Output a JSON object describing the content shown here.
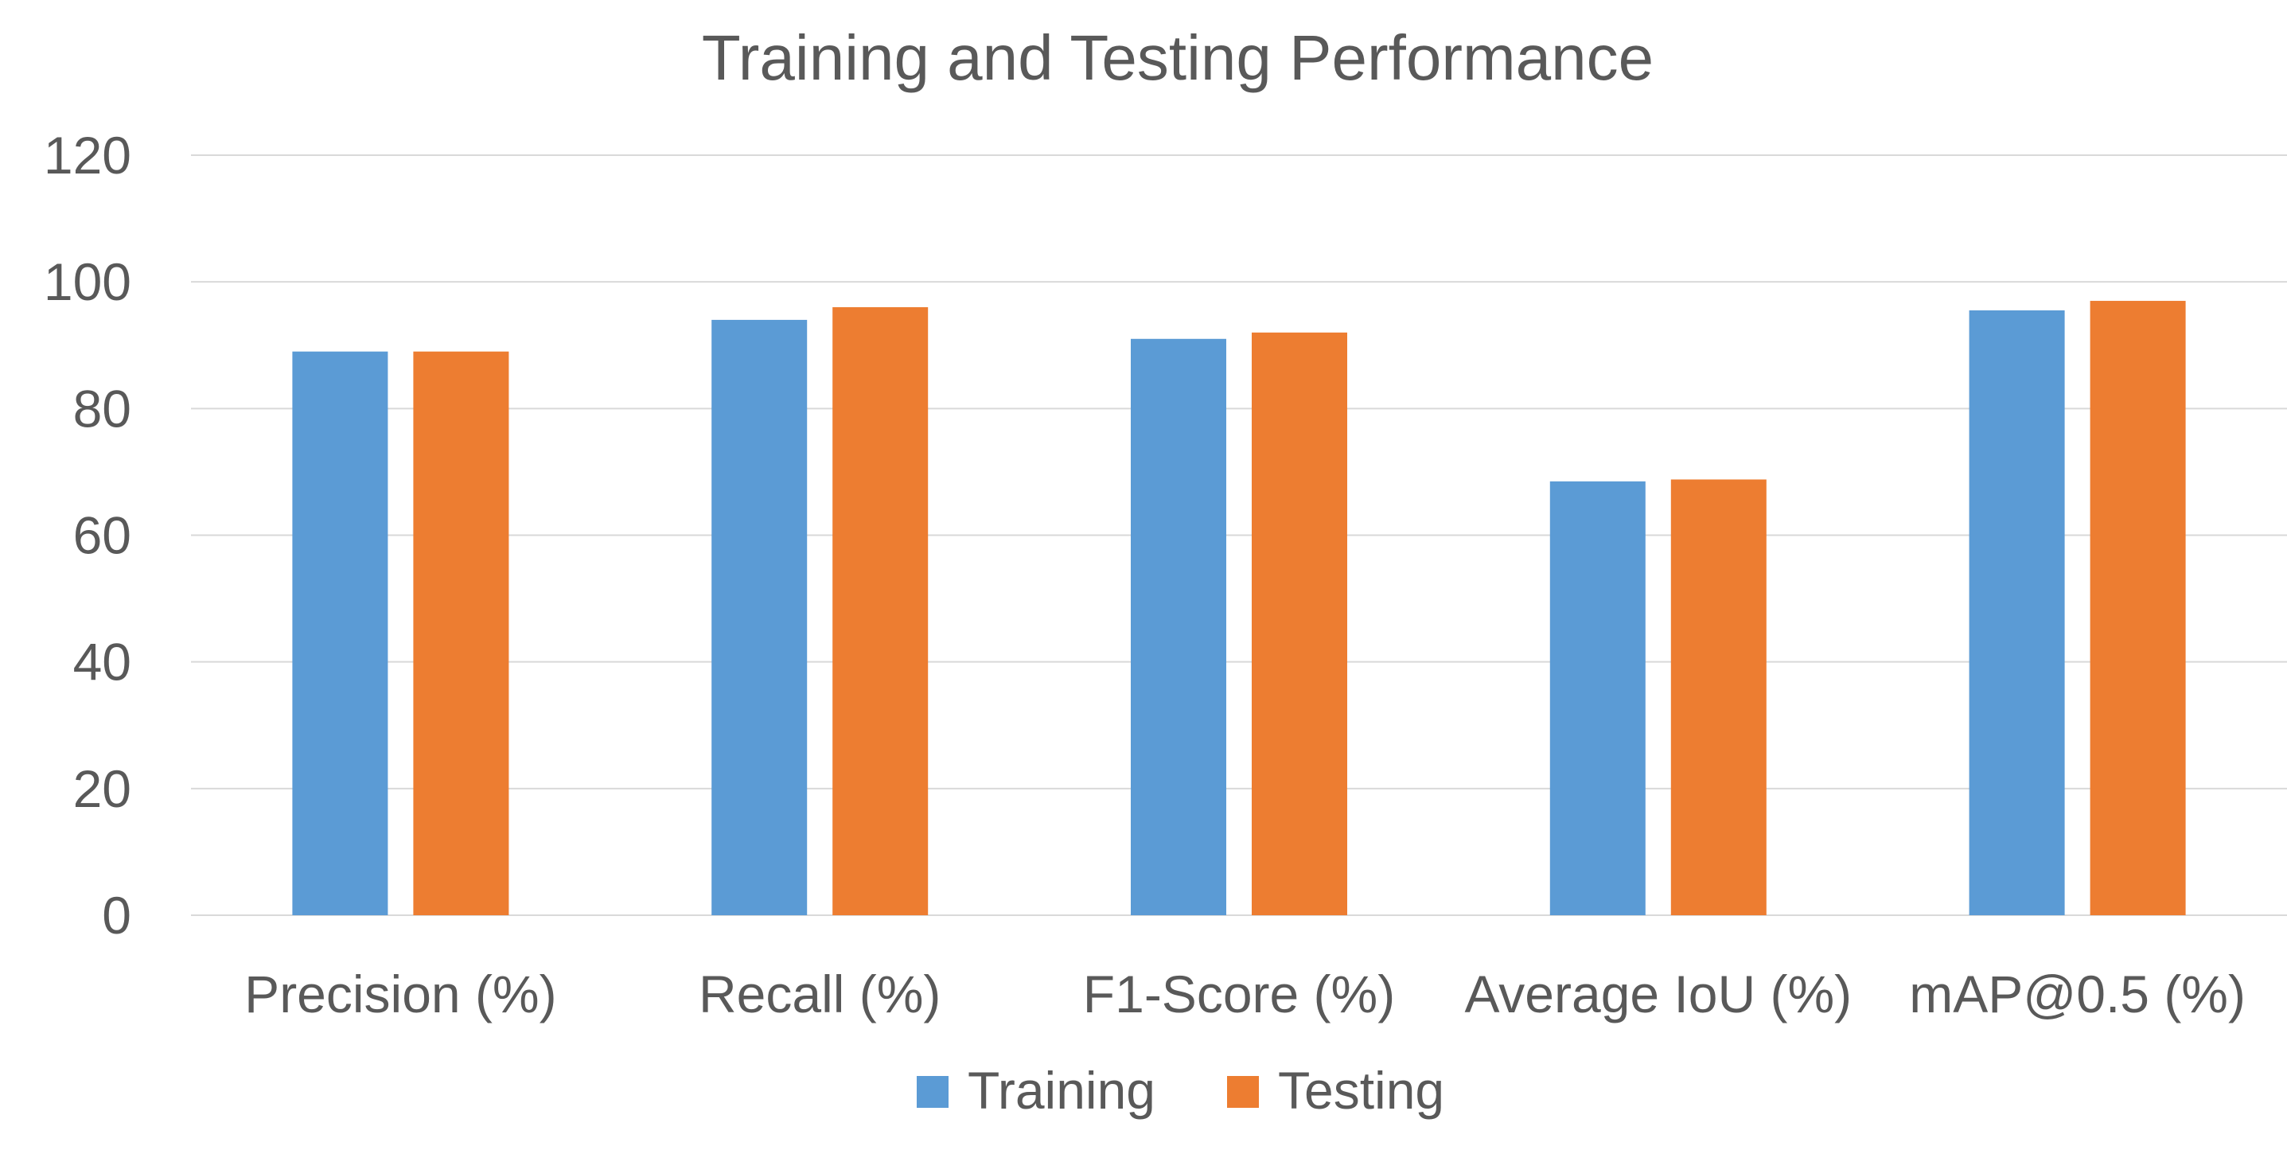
{
  "chart_data": {
    "type": "bar",
    "title": "Training and Testing Performance",
    "categories": [
      "Precision (%)",
      "Recall (%)",
      "F1-Score (%)",
      "Average IoU (%)",
      "mAP@0.5 (%)"
    ],
    "series": [
      {
        "name": "Training",
        "color": "#5b9bd5",
        "values": [
          89,
          94,
          91,
          68.5,
          95.5
        ]
      },
      {
        "name": "Testing",
        "color": "#ed7d31",
        "values": [
          89,
          96,
          92,
          68.8,
          97
        ]
      }
    ],
    "ylim": [
      0,
      120
    ],
    "yticks": [
      "0",
      "20",
      "40",
      "60",
      "80",
      "100",
      "120"
    ],
    "grid": true,
    "legend_position": "bottom"
  }
}
